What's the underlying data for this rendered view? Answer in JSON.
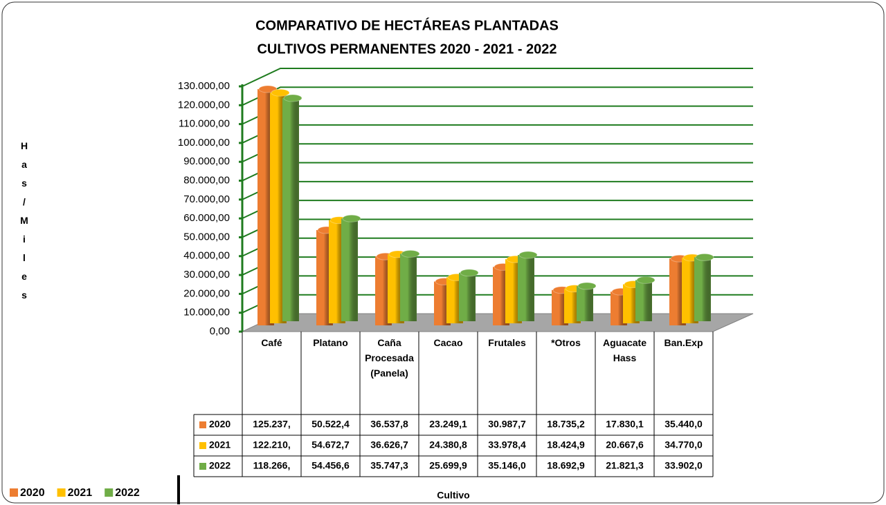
{
  "chart_data": {
    "type": "bar3d",
    "title": [
      "COMPARATIVO DE HECTÁREAS PLANTADAS",
      "CULTIVOS PERMANENTES 2020 - 2021 - 2022"
    ],
    "y_label": "Has/Miles",
    "x_label": "Cultivo",
    "categories": [
      "Café",
      "Platano",
      "Caña Procesada (Panela)",
      "Cacao",
      "Frutales",
      "*Otros",
      "Aguacate Hass",
      "Ban.Exp"
    ],
    "series": [
      {
        "name": "2020",
        "color": "#ed7d31",
        "values": [
          125237,
          50522.4,
          36537.8,
          23249.1,
          30987.7,
          18735.2,
          17830.1,
          35440
        ],
        "value_labels": [
          "125.237,",
          "50.522,4",
          "36.537,8",
          "23.249,1",
          "30.987,7",
          "18.735,2",
          "17.830,1",
          "35.440,0"
        ]
      },
      {
        "name": "2021",
        "color": "#ffc000",
        "values": [
          122210,
          54672.7,
          36626.7,
          24380.8,
          33978.4,
          18424.9,
          20667.6,
          34770
        ],
        "value_labels": [
          "122.210,",
          "54.672,7",
          "36.626,7",
          "24.380,8",
          "33.978,4",
          "18.424,9",
          "20.667,6",
          "34.770,0"
        ]
      },
      {
        "name": "2022",
        "color": "#70ad47",
        "values": [
          118266,
          54456.6,
          35747.3,
          25699.9,
          35146,
          18692.9,
          21821.3,
          33902
        ],
        "value_labels": [
          "118.266,",
          "54.456,6",
          "35.747,3",
          "25.699,9",
          "35.146,0",
          "18.692,9",
          "21.821,3",
          "33.902,0"
        ]
      }
    ],
    "ylim": [
      0,
      130000
    ],
    "yticks": [
      {
        "value": 0,
        "label": "0,00"
      },
      {
        "value": 10000,
        "label": "10.000,00"
      },
      {
        "value": 20000,
        "label": "20.000,00"
      },
      {
        "value": 30000,
        "label": "30.000,00"
      },
      {
        "value": 40000,
        "label": "40.000,00"
      },
      {
        "value": 50000,
        "label": "50.000,00"
      },
      {
        "value": 60000,
        "label": "60.000,00"
      },
      {
        "value": 70000,
        "label": "70.000,00"
      },
      {
        "value": 80000,
        "label": "80.000,00"
      },
      {
        "value": 90000,
        "label": "90.000,00"
      },
      {
        "value": 100000,
        "label": "100.000,00"
      },
      {
        "value": 110000,
        "label": "110.000,00"
      },
      {
        "value": 120000,
        "label": "120.000,00"
      },
      {
        "value": 130000,
        "label": "130.000,00"
      }
    ],
    "grid": true,
    "grid_color": "#1e7b1e",
    "legend": "bottom-left"
  }
}
